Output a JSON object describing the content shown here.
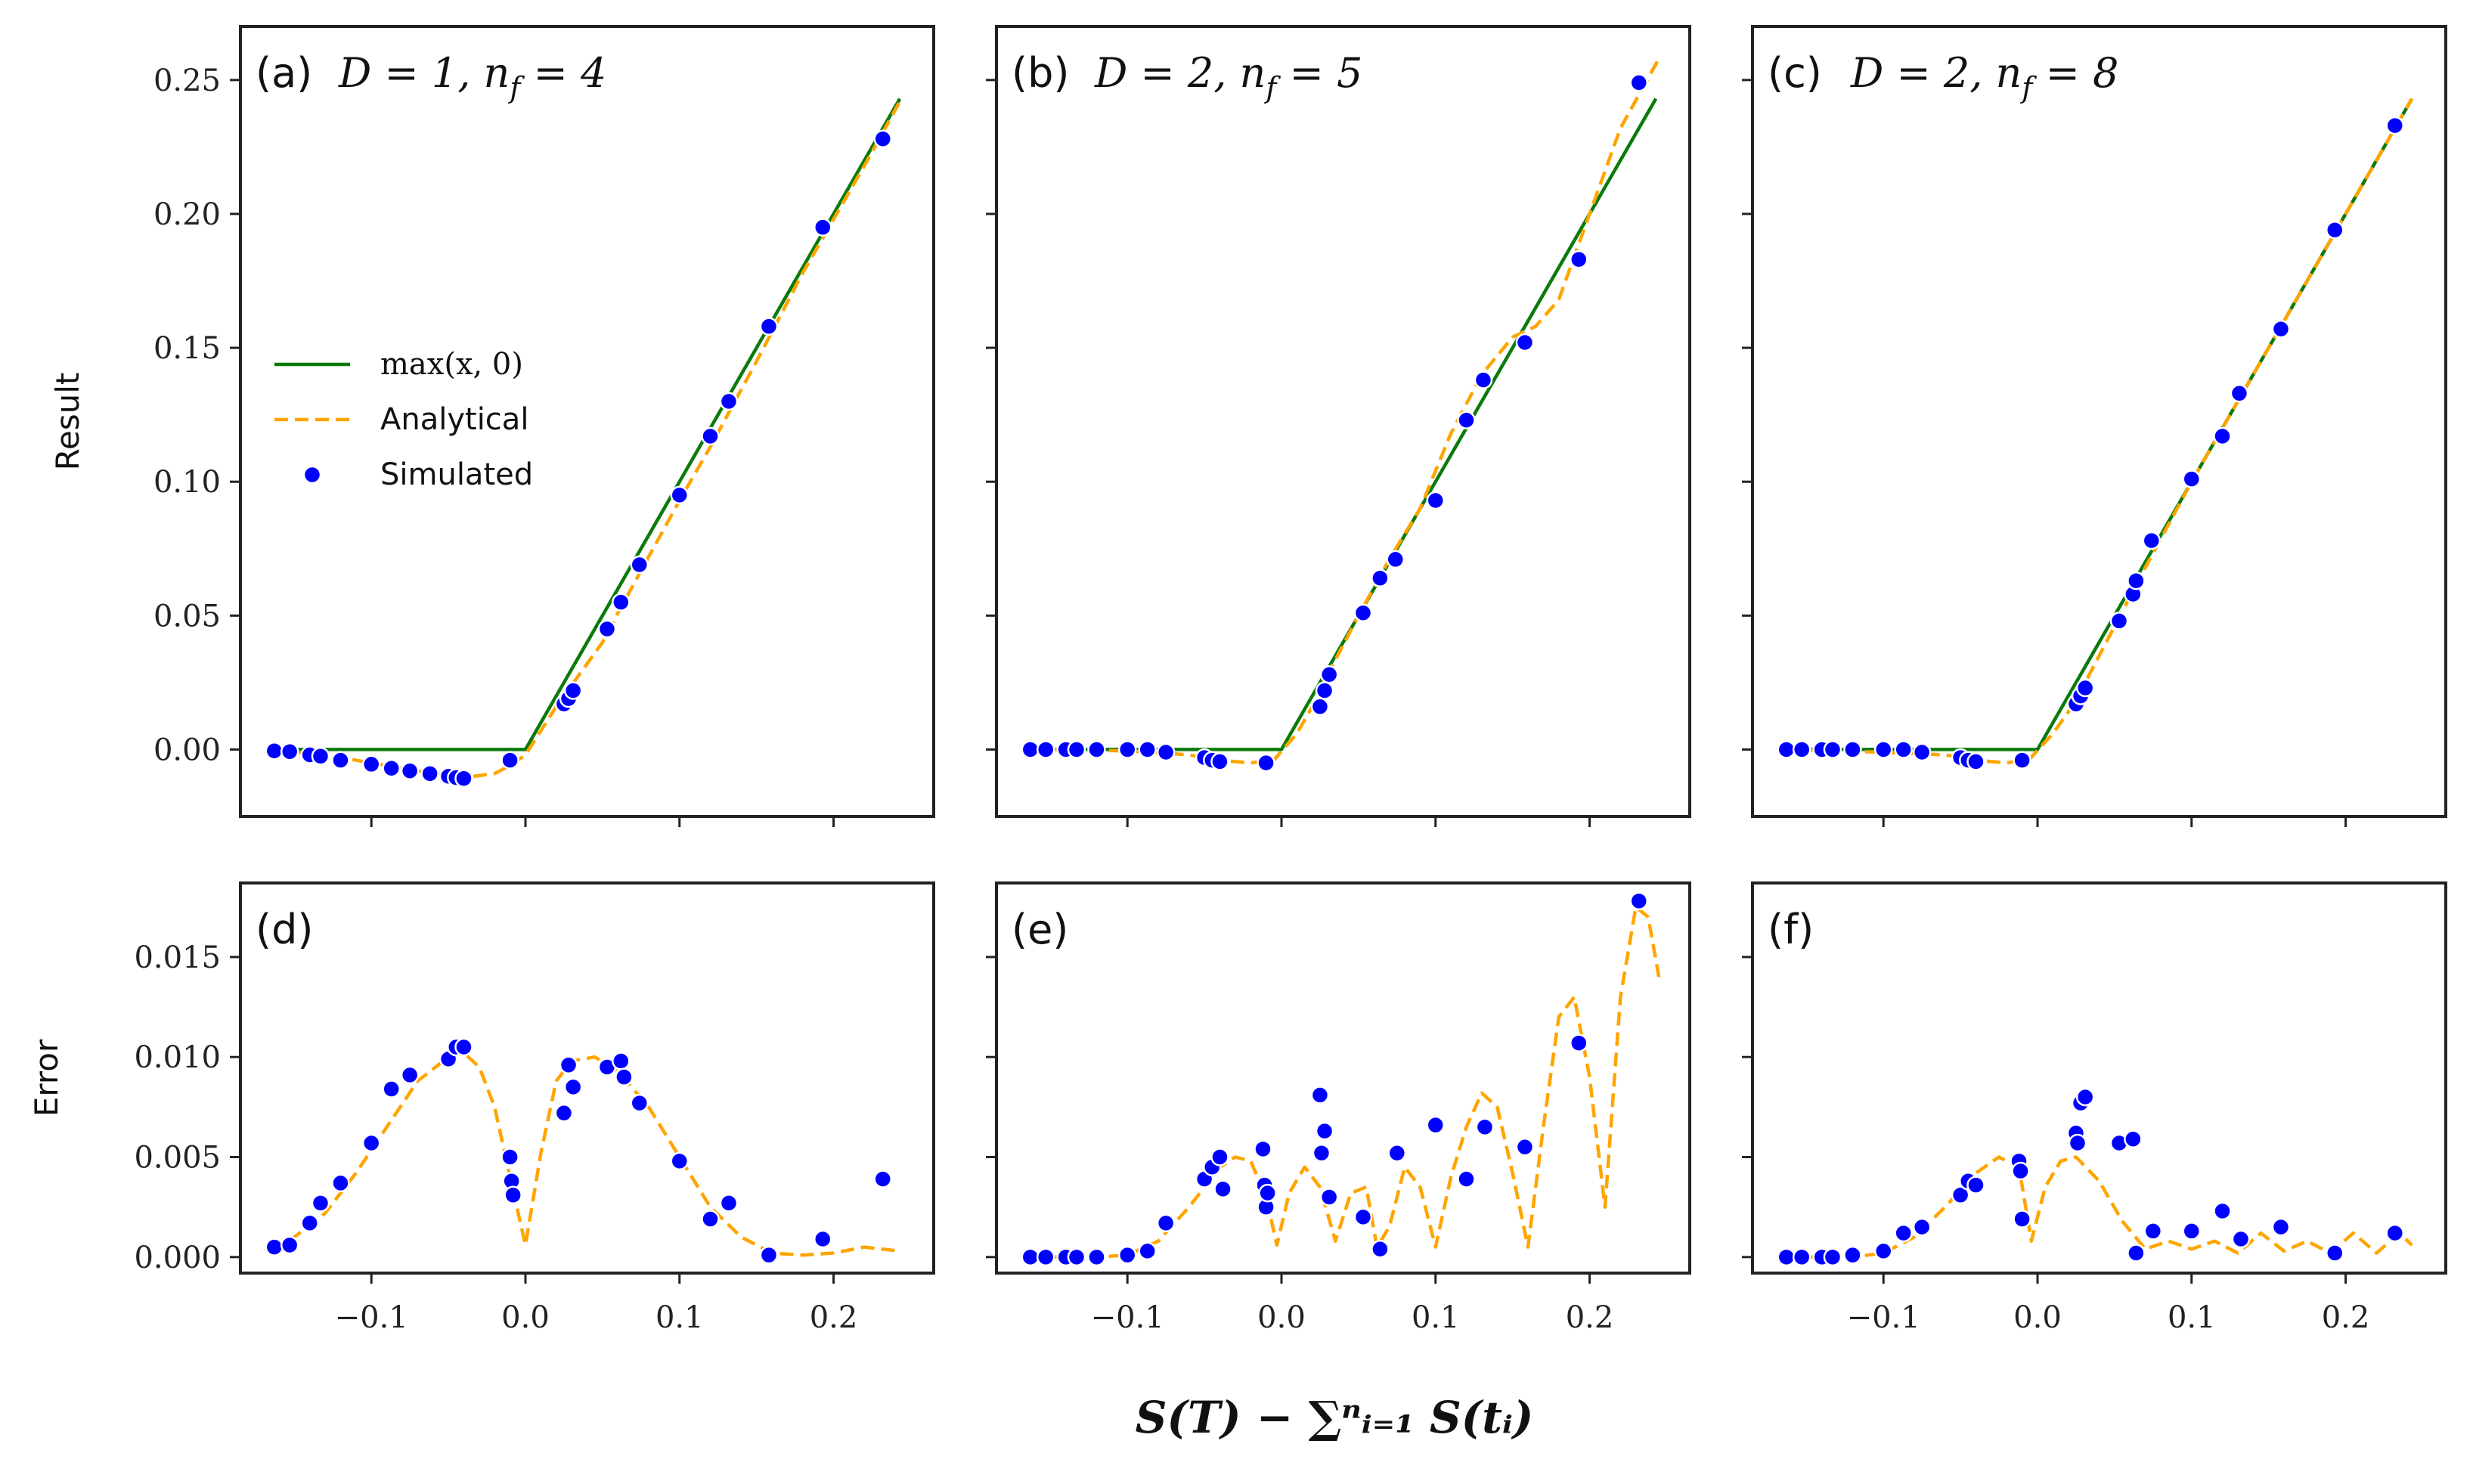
{
  "figure": {
    "shared_xlabel": "S(T) − ∑ⁿᵢ₌₁ S(tᵢ)",
    "colors": {
      "green": "#0b7a0b",
      "orange": "#ffa500",
      "blue": "#0000ff",
      "frame": "#222222"
    }
  },
  "chart_data": [
    {
      "type": "line",
      "panel": "a",
      "label": "(a)",
      "title_math": "D = 1, n_f = 4",
      "title_html": "D = 1, n",
      "title_sub": "f",
      "title_tail": " = 4",
      "ylabel": "Result",
      "xlabel": "",
      "xlim": [
        -0.185,
        0.265
      ],
      "ylim": [
        -0.025,
        0.27
      ],
      "yticks": [
        "0.00",
        "0.05",
        "0.10",
        "0.15",
        "0.20",
        "0.25"
      ],
      "ytick_values": [
        0,
        0.05,
        0.1,
        0.15,
        0.2,
        0.25
      ],
      "xtick_values": [
        -0.1,
        0.0,
        0.1,
        0.2
      ],
      "show_xticklabels": false,
      "show_yticklabels": true,
      "legend": {
        "position": "center-left",
        "entries": [
          {
            "name": "max(x, 0)",
            "style": "green-solid"
          },
          {
            "name": "Analytical",
            "style": "orange-dashed"
          },
          {
            "name": "Simulated",
            "style": "blue-dot"
          }
        ]
      },
      "series": [
        {
          "name": "max(x, 0)",
          "style": "green",
          "x": [
            -0.165,
            0.0,
            0.243
          ],
          "y": [
            0,
            0,
            0.243
          ]
        },
        {
          "name": "Analytical",
          "style": "orange",
          "x": [
            -0.165,
            -0.14,
            -0.12,
            -0.1,
            -0.08,
            -0.06,
            -0.04,
            -0.02,
            -0.01,
            0.0,
            0.02,
            0.03,
            0.05,
            0.06,
            0.08,
            0.1,
            0.12,
            0.15,
            0.18,
            0.2,
            0.22,
            0.243
          ],
          "y": [
            -0.0005,
            -0.0015,
            -0.003,
            -0.005,
            -0.007,
            -0.009,
            -0.0105,
            -0.009,
            -0.006,
            -0.002,
            0.016,
            0.024,
            0.04,
            0.051,
            0.072,
            0.093,
            0.113,
            0.145,
            0.178,
            0.198,
            0.218,
            0.242
          ]
        },
        {
          "name": "Simulated",
          "style": "blue",
          "x": [
            -0.163,
            -0.153,
            -0.14,
            -0.133,
            -0.12,
            -0.1,
            -0.087,
            -0.075,
            -0.062,
            -0.05,
            -0.045,
            -0.04,
            -0.01,
            0.025,
            0.028,
            0.031,
            0.053,
            0.062,
            0.074,
            0.1,
            0.12,
            0.132,
            0.158,
            0.193,
            0.232
          ],
          "y": [
            -0.0005,
            -0.0008,
            -0.002,
            -0.0025,
            -0.004,
            -0.0055,
            -0.007,
            -0.008,
            -0.009,
            -0.01,
            -0.0105,
            -0.0108,
            -0.004,
            0.017,
            0.019,
            0.022,
            0.045,
            0.055,
            0.069,
            0.095,
            0.117,
            0.13,
            0.158,
            0.195,
            0.228
          ]
        }
      ]
    },
    {
      "type": "line",
      "panel": "b",
      "label": "(b)",
      "title_math": "D = 2, n_f = 5",
      "title_html": "D = 2, n",
      "title_sub": "f",
      "title_tail": " = 5",
      "ylabel": "",
      "xlabel": "",
      "xlim": [
        -0.185,
        0.265
      ],
      "ylim": [
        -0.025,
        0.27
      ],
      "ytick_values": [
        0,
        0.05,
        0.1,
        0.15,
        0.2,
        0.25
      ],
      "xtick_values": [
        -0.1,
        0.0,
        0.1,
        0.2
      ],
      "show_xticklabels": false,
      "show_yticklabels": false,
      "series": [
        {
          "name": "max(x, 0)",
          "style": "green",
          "x": [
            -0.165,
            0.0,
            0.243
          ],
          "y": [
            0,
            0,
            0.243
          ]
        },
        {
          "name": "Analytical",
          "style": "orange",
          "x": [
            -0.165,
            -0.1,
            -0.06,
            -0.04,
            -0.02,
            -0.005,
            0.01,
            0.02,
            0.03,
            0.05,
            0.07,
            0.09,
            0.11,
            0.13,
            0.15,
            0.165,
            0.18,
            0.2,
            0.22,
            0.245
          ],
          "y": [
            0,
            -0.0005,
            -0.002,
            -0.004,
            -0.005,
            -0.004,
            0.006,
            0.016,
            0.028,
            0.05,
            0.071,
            0.09,
            0.118,
            0.14,
            0.154,
            0.158,
            0.168,
            0.2,
            0.232,
            0.258
          ]
        },
        {
          "name": "Simulated",
          "style": "blue",
          "x": [
            -0.163,
            -0.153,
            -0.14,
            -0.133,
            -0.12,
            -0.1,
            -0.087,
            -0.075,
            -0.05,
            -0.045,
            -0.04,
            -0.01,
            0.025,
            0.028,
            0.031,
            0.053,
            0.064,
            0.074,
            0.1,
            0.12,
            0.131,
            0.158,
            0.193,
            0.232
          ],
          "y": [
            0,
            0,
            0,
            0,
            0,
            0,
            0,
            -0.001,
            -0.003,
            -0.004,
            -0.0045,
            -0.005,
            0.016,
            0.022,
            0.028,
            0.051,
            0.064,
            0.071,
            0.093,
            0.123,
            0.138,
            0.152,
            0.183,
            0.249
          ]
        }
      ]
    },
    {
      "type": "line",
      "panel": "c",
      "label": "(c)",
      "title_math": "D = 2, n_f = 8",
      "title_html": "D = 2, n",
      "title_sub": "f",
      "title_tail": " = 8",
      "ylabel": "",
      "xlabel": "",
      "xlim": [
        -0.185,
        0.265
      ],
      "ylim": [
        -0.025,
        0.27
      ],
      "ytick_values": [
        0,
        0.05,
        0.1,
        0.15,
        0.2,
        0.25
      ],
      "xtick_values": [
        -0.1,
        0.0,
        0.1,
        0.2
      ],
      "show_xticklabels": false,
      "show_yticklabels": false,
      "series": [
        {
          "name": "max(x, 0)",
          "style": "green",
          "x": [
            -0.165,
            0.0,
            0.243
          ],
          "y": [
            0,
            0,
            0.243
          ]
        },
        {
          "name": "Analytical",
          "style": "orange",
          "x": [
            -0.165,
            -0.1,
            -0.06,
            -0.04,
            -0.02,
            -0.005,
            0.01,
            0.02,
            0.03,
            0.05,
            0.07,
            0.1,
            0.13,
            0.16,
            0.2,
            0.243
          ],
          "y": [
            0,
            -0.001,
            -0.002,
            -0.004,
            -0.005,
            -0.0035,
            0.006,
            0.014,
            0.024,
            0.046,
            0.068,
            0.1,
            0.13,
            0.16,
            0.2,
            0.243
          ]
        },
        {
          "name": "Simulated",
          "style": "blue",
          "x": [
            -0.163,
            -0.153,
            -0.14,
            -0.133,
            -0.12,
            -0.1,
            -0.087,
            -0.075,
            -0.05,
            -0.045,
            -0.04,
            -0.01,
            0.025,
            0.028,
            0.031,
            0.053,
            0.062,
            0.064,
            0.074,
            0.1,
            0.12,
            0.131,
            0.158,
            0.193,
            0.232
          ],
          "y": [
            0,
            0,
            0,
            0,
            0,
            0,
            0,
            -0.001,
            -0.003,
            -0.004,
            -0.0045,
            -0.004,
            0.017,
            0.02,
            0.023,
            0.048,
            0.058,
            0.063,
            0.078,
            0.101,
            0.117,
            0.133,
            0.157,
            0.194,
            0.233
          ]
        }
      ]
    },
    {
      "type": "line",
      "panel": "d",
      "label": "(d)",
      "ylabel": "Error",
      "xlabel": "",
      "xlim": [
        -0.185,
        0.265
      ],
      "ylim": [
        -0.0008,
        0.0187
      ],
      "yticks": [
        "0.000",
        "0.005",
        "0.010",
        "0.015"
      ],
      "ytick_values": [
        0,
        0.005,
        0.01,
        0.015
      ],
      "xticks": [
        "−0.1",
        "0.0",
        "0.1",
        "0.2"
      ],
      "xtick_values": [
        -0.1,
        0.0,
        0.1,
        0.2
      ],
      "show_xticklabels": true,
      "show_yticklabels": true,
      "series": [
        {
          "name": "Analytical",
          "style": "orange",
          "x": [
            -0.165,
            -0.15,
            -0.13,
            -0.11,
            -0.09,
            -0.07,
            -0.05,
            -0.04,
            -0.03,
            -0.02,
            -0.01,
            0.0,
            0.01,
            0.02,
            0.03,
            0.045,
            0.06,
            0.08,
            0.1,
            0.12,
            0.14,
            0.16,
            0.18,
            0.2,
            0.22,
            0.243
          ],
          "y": [
            0.0004,
            0.001,
            0.0022,
            0.0042,
            0.0065,
            0.0088,
            0.01,
            0.0102,
            0.0095,
            0.0075,
            0.004,
            0.0006,
            0.0052,
            0.0088,
            0.0098,
            0.01,
            0.0093,
            0.0075,
            0.005,
            0.0025,
            0.001,
            0.0002,
            0.0001,
            0.0002,
            0.0005,
            0.0003
          ]
        },
        {
          "name": "Simulated",
          "style": "blue",
          "x": [
            -0.163,
            -0.153,
            -0.14,
            -0.133,
            -0.12,
            -0.1,
            -0.087,
            -0.075,
            -0.05,
            -0.045,
            -0.04,
            -0.01,
            -0.009,
            -0.008,
            0.025,
            0.028,
            0.031,
            0.053,
            0.062,
            0.064,
            0.074,
            0.1,
            0.12,
            0.132,
            0.158,
            0.193,
            0.232
          ],
          "y": [
            0.0005,
            0.0006,
            0.0017,
            0.0027,
            0.0037,
            0.0057,
            0.0084,
            0.0091,
            0.0099,
            0.0105,
            0.0105,
            0.005,
            0.0038,
            0.0031,
            0.0072,
            0.0096,
            0.0085,
            0.0095,
            0.0098,
            0.009,
            0.0077,
            0.0048,
            0.0019,
            0.0027,
            0.0001,
            0.0009,
            0.0039
          ]
        }
      ]
    },
    {
      "type": "line",
      "panel": "e",
      "label": "(e)",
      "ylabel": "",
      "xlabel": "",
      "xlim": [
        -0.185,
        0.265
      ],
      "ylim": [
        -0.0008,
        0.0187
      ],
      "ytick_values": [
        0,
        0.005,
        0.01,
        0.015
      ],
      "xticks": [
        "−0.1",
        "0.0",
        "0.1",
        "0.2"
      ],
      "xtick_values": [
        -0.1,
        0.0,
        0.1,
        0.2
      ],
      "show_xticklabels": true,
      "show_yticklabels": false,
      "series": [
        {
          "name": "Analytical",
          "style": "orange",
          "x": [
            -0.165,
            -0.12,
            -0.1,
            -0.08,
            -0.06,
            -0.04,
            -0.03,
            -0.02,
            -0.01,
            -0.003,
            0.005,
            0.015,
            0.025,
            0.035,
            0.045,
            0.055,
            0.062,
            0.07,
            0.08,
            0.09,
            0.1,
            0.11,
            0.12,
            0.13,
            0.14,
            0.15,
            0.16,
            0.17,
            0.18,
            0.19,
            0.2,
            0.21,
            0.22,
            0.23,
            0.238,
            0.245
          ],
          "y": [
            0,
            0,
            0.0001,
            0.0008,
            0.0025,
            0.0045,
            0.005,
            0.0048,
            0.003,
            0.0006,
            0.0032,
            0.0045,
            0.0035,
            0.0008,
            0.0032,
            0.0035,
            0.0005,
            0.0015,
            0.0045,
            0.0035,
            0.0005,
            0.004,
            0.0065,
            0.0082,
            0.0075,
            0.0042,
            0.0005,
            0.0065,
            0.012,
            0.013,
            0.009,
            0.0025,
            0.013,
            0.0175,
            0.017,
            0.014
          ]
        },
        {
          "name": "Simulated",
          "style": "blue",
          "x": [
            -0.163,
            -0.153,
            -0.14,
            -0.133,
            -0.12,
            -0.1,
            -0.087,
            -0.075,
            -0.05,
            -0.045,
            -0.04,
            -0.038,
            -0.012,
            -0.011,
            -0.01,
            -0.009,
            0.025,
            0.026,
            0.028,
            0.031,
            0.053,
            0.064,
            0.075,
            0.1,
            0.12,
            0.132,
            0.158,
            0.193,
            0.232
          ],
          "y": [
            0,
            0,
            0,
            0,
            0,
            0.0001,
            0.0003,
            0.0017,
            0.0039,
            0.0045,
            0.005,
            0.0034,
            0.0054,
            0.0036,
            0.0025,
            0.0032,
            0.0081,
            0.0052,
            0.0063,
            0.003,
            0.002,
            0.0004,
            0.0052,
            0.0066,
            0.0039,
            0.0065,
            0.0055,
            0.0107,
            0.0178
          ]
        }
      ]
    },
    {
      "type": "line",
      "panel": "f",
      "label": "(f)",
      "ylabel": "",
      "xlabel": "",
      "xlim": [
        -0.185,
        0.265
      ],
      "ylim": [
        -0.0008,
        0.0187
      ],
      "ytick_values": [
        0,
        0.005,
        0.01,
        0.015
      ],
      "xticks": [
        "−0.1",
        "0.0",
        "0.1",
        "0.2"
      ],
      "xtick_values": [
        -0.1,
        0.0,
        0.1,
        0.2
      ],
      "show_xticklabels": true,
      "show_yticklabels": false,
      "series": [
        {
          "name": "Analytical",
          "style": "orange",
          "x": [
            -0.165,
            -0.12,
            -0.1,
            -0.08,
            -0.06,
            -0.04,
            -0.025,
            -0.012,
            -0.004,
            0.005,
            0.015,
            0.025,
            0.04,
            0.055,
            0.07,
            0.085,
            0.1,
            0.115,
            0.13,
            0.145,
            0.16,
            0.175,
            0.19,
            0.205,
            0.22,
            0.235,
            0.243
          ],
          "y": [
            0,
            0,
            0.0002,
            0.001,
            0.0025,
            0.0042,
            0.005,
            0.0045,
            0.0008,
            0.0035,
            0.0048,
            0.005,
            0.0038,
            0.0018,
            0.0004,
            0.0008,
            0.0004,
            0.0008,
            0.0002,
            0.0012,
            0.0003,
            0.0008,
            0.0002,
            0.0012,
            0.0002,
            0.0012,
            0.0006
          ]
        },
        {
          "name": "Simulated",
          "style": "blue",
          "x": [
            -0.163,
            -0.153,
            -0.14,
            -0.133,
            -0.12,
            -0.1,
            -0.087,
            -0.075,
            -0.05,
            -0.045,
            -0.04,
            -0.012,
            -0.011,
            -0.01,
            0.025,
            0.026,
            0.028,
            0.031,
            0.053,
            0.062,
            0.064,
            0.075,
            0.1,
            0.12,
            0.132,
            0.158,
            0.193,
            0.232
          ],
          "y": [
            0,
            0,
            0,
            0,
            0.0001,
            0.0003,
            0.0012,
            0.0015,
            0.0031,
            0.0038,
            0.0036,
            0.0048,
            0.0043,
            0.0019,
            0.0062,
            0.0057,
            0.0077,
            0.008,
            0.0057,
            0.0059,
            0.0002,
            0.0013,
            0.0013,
            0.0023,
            0.0009,
            0.0015,
            0.0002,
            0.0012
          ]
        }
      ]
    }
  ]
}
